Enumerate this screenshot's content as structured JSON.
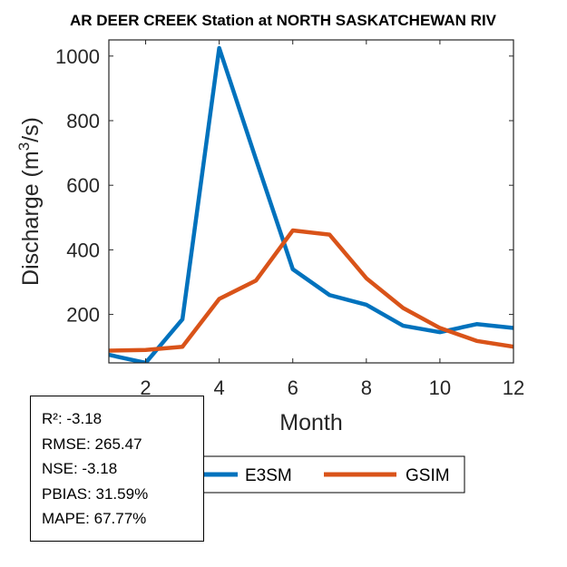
{
  "chart_data": {
    "type": "line",
    "title": "AR DEER CREEK  Station at  NORTH SASKATCHEWAN RIV",
    "xlabel": "Month",
    "ylabel": "Discharge (m³/s)",
    "ylabel_parts": {
      "prefix": "Discharge (m",
      "superscript": "3",
      "suffix": "/s)"
    },
    "xlim": [
      1,
      12
    ],
    "ylim": [
      50,
      1050
    ],
    "xticks": [
      2,
      4,
      6,
      8,
      10,
      12
    ],
    "yticks": [
      200,
      400,
      600,
      800,
      1000
    ],
    "x": [
      1,
      2,
      3,
      4,
      5,
      6,
      7,
      8,
      9,
      10,
      11,
      12
    ],
    "series": [
      {
        "name": "E3SM",
        "color": "#0072BD",
        "values": [
          75,
          50,
          185,
          1025,
          680,
          340,
          260,
          230,
          165,
          145,
          170,
          158
        ]
      },
      {
        "name": "GSIM",
        "color": "#D95319",
        "values": [
          88,
          90,
          100,
          248,
          305,
          460,
          447,
          312,
          220,
          158,
          118,
          100
        ]
      }
    ],
    "legend": "bottom-right"
  },
  "stats": {
    "r2": "R²: -3.18",
    "rmse": "RMSE: 265.47",
    "nse": "NSE: -3.18",
    "pbias": "PBIAS: 31.59%",
    "mape": "MAPE: 67.77%"
  }
}
